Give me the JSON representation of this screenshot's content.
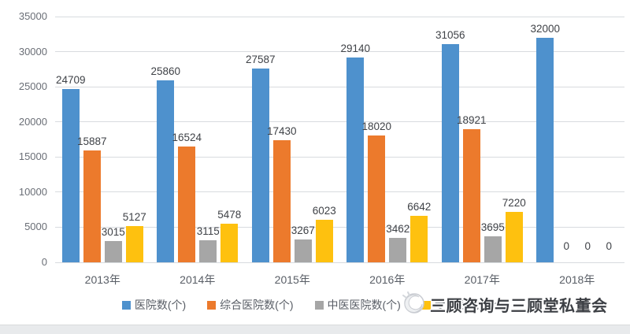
{
  "colors": {
    "hospital": "#4E91CD",
    "general": "#EC7A2C",
    "tcm": "#A6A6A6",
    "specialty": "#FEC10F",
    "grid": "#D8DBDF",
    "tick_text": "#6A6E76",
    "data_label_text": "#3F4247",
    "axis_text": "#595E66",
    "watermark_text": "#3C3F44",
    "bottom_band": "#E8EAEC",
    "bottom_band_border": "#D9DADC"
  },
  "chart_data": {
    "type": "bar",
    "categories": [
      "2013年",
      "2014年",
      "2015年",
      "2016年",
      "2017年",
      "2018年"
    ],
    "series": [
      {
        "name": "医院数(个)",
        "color_key": "hospital",
        "values": [
          24709,
          25860,
          27587,
          29140,
          31056,
          32000
        ]
      },
      {
        "name": "综合医院数(个)",
        "color_key": "general",
        "values": [
          15887,
          16524,
          17430,
          18020,
          18921,
          0
        ]
      },
      {
        "name": "中医医院数(个)",
        "color_key": "tcm",
        "values": [
          3015,
          3115,
          3267,
          3462,
          3695,
          0
        ]
      },
      {
        "name": "专科医院数(个)",
        "color_key": "specialty",
        "values": [
          5127,
          5478,
          6023,
          6642,
          7220,
          0
        ]
      }
    ],
    "title": "",
    "xlabel": "",
    "ylabel": "",
    "ylim": [
      0,
      35000
    ],
    "ytick_step": 5000,
    "yticks": [
      "35000",
      "30000",
      "25000",
      "20000",
      "15000",
      "10000",
      "5000",
      "0"
    ],
    "grid": true,
    "legend_position": "bottom",
    "data_labels": true
  },
  "watermark": {
    "text": "三顾咨询与三顾堂私董会"
  }
}
